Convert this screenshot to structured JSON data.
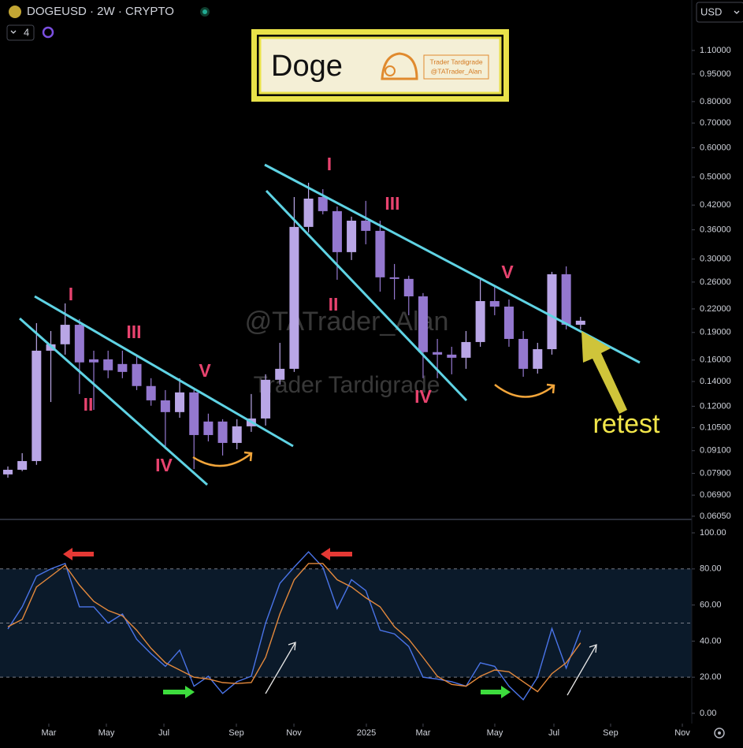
{
  "header": {
    "symbol": "DOGEUSD · 2W · CRYPTO",
    "count": "4",
    "currency": "USD"
  },
  "banner": {
    "title": "Doge",
    "brand": "Trader Tardigrade",
    "handle": "@TATrader_Alan"
  },
  "watermark": {
    "handle": "@TATrader_Alan",
    "brand": "Trader Tardigrade"
  },
  "chart_data": [
    {
      "type": "candlestick",
      "log_scale": true,
      "grid": false,
      "colors": {
        "up": "#b9a6e6",
        "down": "#9478cf"
      },
      "open": [
        0.0785,
        0.0808,
        0.0853,
        0.1696,
        0.1765,
        0.1993,
        0.1607,
        0.1607,
        0.1561,
        0.1561,
        0.1361,
        0.1245,
        0.1157,
        0.1308,
        0.1091,
        0.1091,
        0.0955,
        0.1059,
        0.1112,
        0.1415,
        0.1515,
        0.3666,
        0.4416,
        0.4044,
        0.3133,
        0.3811,
        0.3577,
        0.2678,
        0.2652,
        0.2379,
        0.1681,
        0.1655,
        0.1623,
        0.179,
        0.231,
        0.2232,
        0.1825,
        0.1515,
        0.1712,
        0.273,
        0.1993
      ],
      "high": [
        0.0825,
        0.0896,
        0.2013,
        0.1917,
        0.2277,
        0.2065,
        0.1696,
        0.1696,
        0.1696,
        0.1655,
        0.1429,
        0.1327,
        0.1429,
        0.1327,
        0.1146,
        0.1107,
        0.1107,
        0.1295,
        0.1464,
        0.1781,
        0.4416,
        0.4826,
        0.4637,
        0.4163,
        0.3907,
        0.4311,
        0.3811,
        0.291,
        0.2705,
        0.2428,
        0.1825,
        0.1738,
        0.1917,
        0.2638,
        0.255,
        0.2333,
        0.1917,
        0.1781,
        0.2771,
        0.2867,
        0.2094
      ],
      "low": [
        0.0769,
        0.0801,
        0.0833,
        0.1232,
        0.1655,
        0.1295,
        0.1173,
        0.1429,
        0.1429,
        0.1327,
        0.1204,
        0.0918,
        0.1117,
        0.0812,
        0.0964,
        0.0883,
        0.0918,
        0.1023,
        0.1064,
        0.1374,
        0.1486,
        0.3541,
        0.3964,
        0.2638,
        0.2983,
        0.329,
        0.245,
        0.2333,
        0.2115,
        0.1429,
        0.1429,
        0.1464,
        0.1515,
        0.1738,
        0.2115,
        0.1738,
        0.1442,
        0.1471,
        0.1655,
        0.1937,
        0.1937
      ],
      "close": [
        0.0808,
        0.0853,
        0.1696,
        0.1765,
        0.1993,
        0.1577,
        0.1577,
        0.1501,
        0.1486,
        0.1361,
        0.1245,
        0.1157,
        0.1308,
        0.1003,
        0.1003,
        0.0955,
        0.1059,
        0.1112,
        0.1415,
        0.1515,
        0.3666,
        0.4372,
        0.4044,
        0.3133,
        0.3811,
        0.3577,
        0.2678,
        0.2652,
        0.2379,
        0.1681,
        0.1655,
        0.1623,
        0.179,
        0.231,
        0.2232,
        0.1825,
        0.1515,
        0.1712,
        0.273,
        0.1993,
        0.2044
      ],
      "xlim": [
        -0.55,
        47.77
      ],
      "xticks": [
        {
          "value": 2.86,
          "label": "Mar"
        },
        {
          "value": 6.88,
          "label": "May"
        },
        {
          "value": 10.9,
          "label": "Jul"
        },
        {
          "value": 15.96,
          "label": "Sep"
        },
        {
          "value": 19.98,
          "label": "Nov"
        },
        {
          "value": 25.04,
          "label": "2025"
        },
        {
          "value": 29.0,
          "label": "Mar"
        },
        {
          "value": 34.01,
          "label": "May"
        },
        {
          "value": 38.14,
          "label": "Jul"
        },
        {
          "value": 42.1,
          "label": "Sep"
        },
        {
          "value": 47.11,
          "label": "Nov"
        }
      ],
      "ylim": [
        0.0596,
        1.506
      ],
      "yticks": [
        {
          "value": 1.1,
          "label": "1.10000"
        },
        {
          "value": 0.95,
          "label": "0.95000"
        },
        {
          "value": 0.8,
          "label": "0.80000"
        },
        {
          "value": 0.7,
          "label": "0.70000"
        },
        {
          "value": 0.6,
          "label": "0.60000"
        },
        {
          "value": 0.5,
          "label": "0.50000"
        },
        {
          "value": 0.42,
          "label": "0.42000"
        },
        {
          "value": 0.36,
          "label": "0.36000"
        },
        {
          "value": 0.3,
          "label": "0.30000"
        },
        {
          "value": 0.26,
          "label": "0.26000"
        },
        {
          "value": 0.22,
          "label": "0.22000"
        },
        {
          "value": 0.19,
          "label": "0.19000"
        },
        {
          "value": 0.16,
          "label": "0.16000"
        },
        {
          "value": 0.14,
          "label": "0.14000"
        },
        {
          "value": 0.12,
          "label": "0.12000"
        },
        {
          "value": 0.105,
          "label": "0.10500"
        },
        {
          "value": 0.091,
          "label": "0.09100"
        },
        {
          "value": 0.079,
          "label": "0.07900"
        },
        {
          "value": 0.069,
          "label": "0.06900"
        },
        {
          "value": 0.0605,
          "label": "0.06050"
        }
      ],
      "annotations": {
        "waves": [
          "I",
          "II",
          "III",
          "IV",
          "V",
          "I",
          "II",
          "III",
          "IV",
          "V"
        ],
        "retest": "retest"
      }
    },
    {
      "type": "line",
      "grid": false,
      "series": [
        {
          "color": "#4a74e8",
          "values": [
            46.7,
            59,
            76,
            80,
            83,
            59,
            59,
            50,
            55,
            41,
            33,
            26,
            35,
            15,
            20.5,
            11,
            17.5,
            20.5,
            50,
            72,
            81,
            89.5,
            81,
            58,
            74,
            68,
            46,
            44,
            37,
            20,
            19,
            17.5,
            15,
            28,
            26,
            15,
            7.5,
            20,
            47,
            25,
            46
          ]
        },
        {
          "color": "#e4893c",
          "values": [
            48,
            52,
            70,
            76,
            82,
            71,
            62,
            57,
            54,
            46,
            36,
            28,
            24,
            20,
            19,
            17,
            16.5,
            17,
            31,
            55,
            74,
            83,
            83,
            74,
            70,
            64,
            59,
            48,
            41,
            31,
            20.5,
            16,
            15,
            20.5,
            24,
            23,
            17.5,
            12,
            22,
            28,
            39
          ]
        }
      ],
      "ylim": [
        -5.7,
        107
      ],
      "yticks": [
        {
          "value": 100,
          "label": "100.00"
        },
        {
          "value": 80,
          "label": "80.00"
        },
        {
          "value": 60,
          "label": "60.00"
        },
        {
          "value": 40,
          "label": "40.00"
        },
        {
          "value": 20,
          "label": "20.00"
        },
        {
          "value": 0,
          "label": "0.00"
        }
      ],
      "band": [
        20,
        80
      ],
      "dashed_levels": [
        20,
        50,
        80
      ]
    }
  ]
}
